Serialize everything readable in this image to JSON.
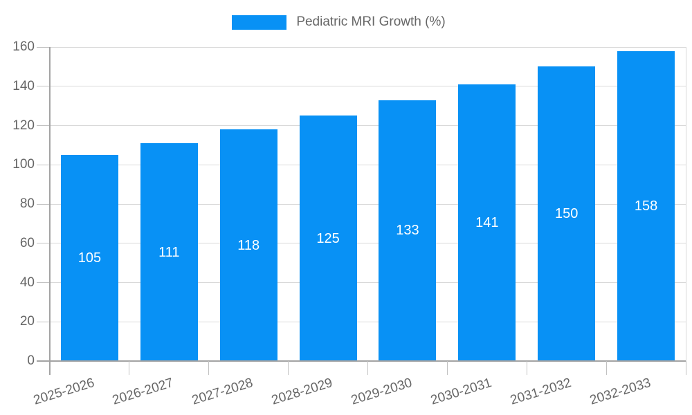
{
  "legend": {
    "label": "Pediatric MRI Growth (%)"
  },
  "chart_data": {
    "type": "bar",
    "title": "",
    "series_name": "Pediatric MRI Growth (%)",
    "categories": [
      "2025-2026",
      "2026-2027",
      "2027-2028",
      "2028-2029",
      "2029-2030",
      "2030-2031",
      "2031-2032",
      "2032-2033"
    ],
    "values": [
      105,
      111,
      118,
      125,
      133,
      141,
      150,
      158
    ],
    "value_labels": [
      "105",
      "111",
      "118",
      "125",
      "133",
      "141",
      "150",
      "158"
    ],
    "ylim": [
      0,
      160
    ],
    "yticks": [
      0,
      20,
      40,
      60,
      80,
      100,
      120,
      140,
      160
    ],
    "grid": true,
    "legend_position": "top-center",
    "x_label_rotation_deg": -17,
    "colors": {
      "bar": "#0891f5",
      "value_label": "#ffffff",
      "tick_label": "#666666",
      "legend_text": "#666666",
      "axis": "#a3a3a3",
      "gridline": "#d9d9d9",
      "tick_mark": "#c2c2c2",
      "background": "#ffffff"
    }
  }
}
